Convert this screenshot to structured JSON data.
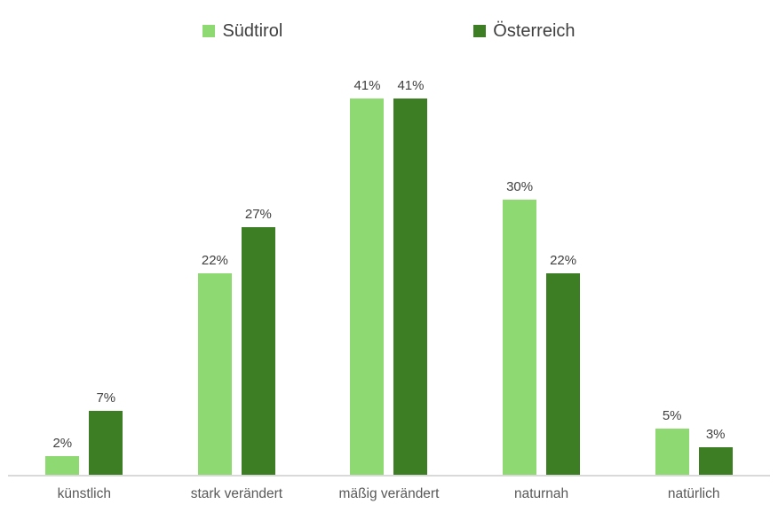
{
  "chart_data": {
    "type": "bar",
    "title": "",
    "xlabel": "",
    "ylabel": "",
    "categories": [
      "künstlich",
      "stark verändert",
      "mäßig verändert",
      "naturnah",
      "natürlich"
    ],
    "series": [
      {
        "name": "Südtirol",
        "color": "#8FD973",
        "values": [
          2,
          22,
          41,
          30,
          5
        ]
      },
      {
        "name": "Österreich",
        "color": "#3D7D23",
        "values": [
          7,
          27,
          41,
          22,
          3
        ]
      }
    ],
    "value_suffix": "%",
    "data_labels": true,
    "ylim": [
      0,
      45
    ],
    "grid": false,
    "legend_position": "top"
  },
  "colors": {
    "value_label": "#404040",
    "category_label": "#595959",
    "legend_text": "#3f3f3f",
    "axis_line": "#d9d9d9",
    "background": "#ffffff"
  }
}
